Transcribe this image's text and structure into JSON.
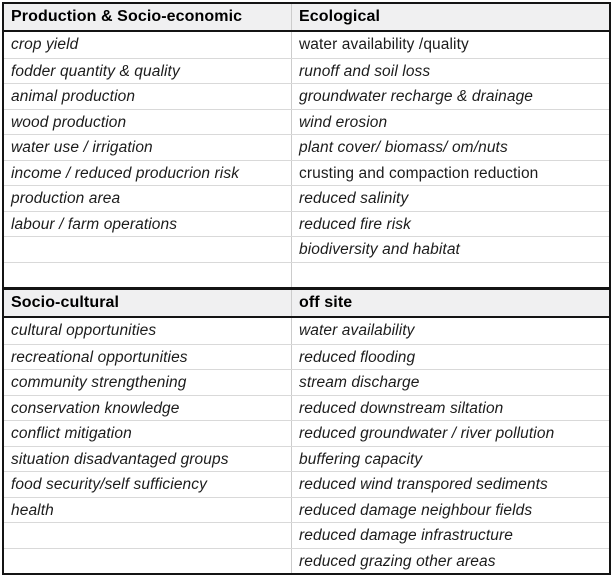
{
  "colors": {
    "outer_border": "#141414",
    "header_background": "#f0f0f1",
    "grid_line": "#d9d9d9",
    "column_divider": "#cccccc",
    "text": "#1c1c1c",
    "header_text": "#000000",
    "row_background": "#ffffff"
  },
  "sections": [
    {
      "row_count": 10,
      "columns": [
        {
          "header": "Production & Socio-economic",
          "items": [
            {
              "text": "crop yield",
              "italic": true
            },
            {
              "text": "fodder quantity & quality",
              "italic": true
            },
            {
              "text": "animal production",
              "italic": true
            },
            {
              "text": "wood production",
              "italic": true
            },
            {
              "text": "water use / irrigation",
              "italic": true
            },
            {
              "text": "income / reduced producrion risk",
              "italic": true
            },
            {
              "text": "production area",
              "italic": true
            },
            {
              "text": "labour / farm operations",
              "italic": true
            }
          ]
        },
        {
          "header": "Ecological",
          "items": [
            {
              "text": "water availability /quality",
              "italic": false
            },
            {
              "text": "runoff and soil loss",
              "italic": true
            },
            {
              "text": "groundwater recharge & drainage",
              "italic": true
            },
            {
              "text": "wind erosion",
              "italic": true
            },
            {
              "text": "plant cover/ biomass/ om/nuts",
              "italic": true
            },
            {
              "text": "crusting and compaction reduction",
              "italic": false
            },
            {
              "text": "reduced salinity",
              "italic": true
            },
            {
              "text": "reduced fire risk",
              "italic": true
            },
            {
              "text": "biodiversity and habitat",
              "italic": true
            }
          ]
        }
      ]
    },
    {
      "row_count": 10,
      "columns": [
        {
          "header": "Socio-cultural",
          "items": [
            {
              "text": "cultural opportunities",
              "italic": true
            },
            {
              "text": "recreational opportunities",
              "italic": true
            },
            {
              "text": "community strengthening",
              "italic": true
            },
            {
              "text": "conservation knowledge",
              "italic": true
            },
            {
              "text": "conflict mitigation",
              "italic": true
            },
            {
              "text": "situation disadvantaged groups",
              "italic": true
            },
            {
              "text": "food security/self sufficiency",
              "italic": true
            },
            {
              "text": "health",
              "italic": true
            }
          ]
        },
        {
          "header": "off site",
          "items": [
            {
              "text": "water availability",
              "italic": true
            },
            {
              "text": "reduced flooding",
              "italic": true
            },
            {
              "text": "stream discharge",
              "italic": true
            },
            {
              "text": "reduced downstream siltation",
              "italic": true
            },
            {
              "text": "reduced groundwater / river pollution",
              "italic": true
            },
            {
              "text": "buffering capacity",
              "italic": true
            },
            {
              "text": "reduced wind transpored sediments",
              "italic": true
            },
            {
              "text": "reduced damage neighbour fields",
              "italic": true
            },
            {
              "text": "reduced damage infrastructure",
              "italic": true
            },
            {
              "text": "reduced grazing other areas",
              "italic": true
            }
          ]
        }
      ]
    }
  ]
}
